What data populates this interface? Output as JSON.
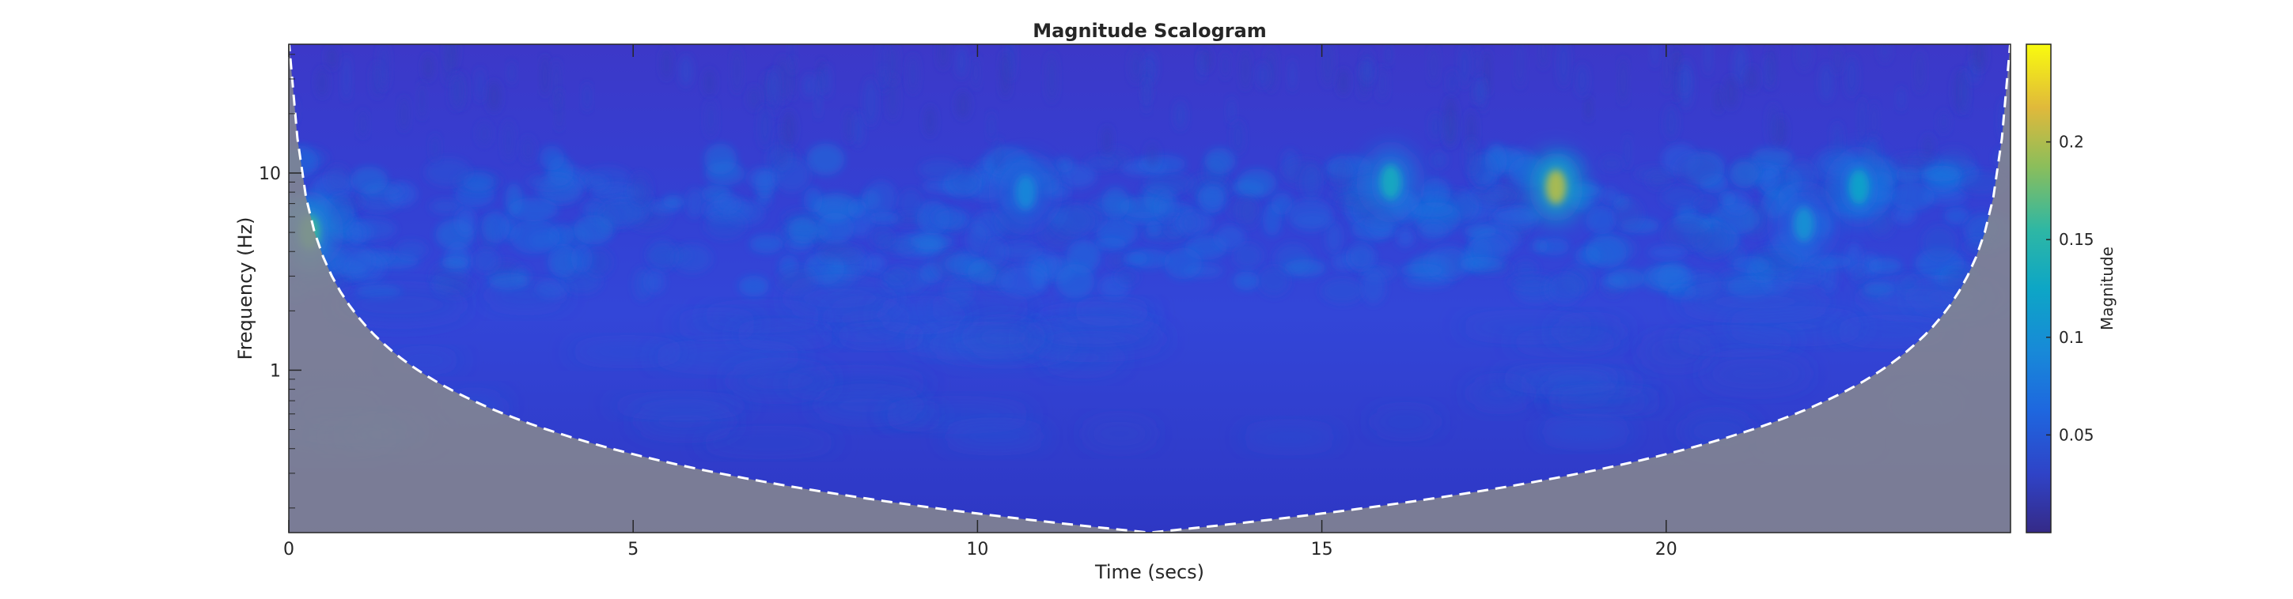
{
  "chart_data": {
    "type": "heatmap",
    "title": "Magnitude Scalogram",
    "xlabel": "Time (secs)",
    "ylabel": "Frequency (Hz)",
    "xlim": [
      0,
      25
    ],
    "ylim_hz": [
      0.15,
      45
    ],
    "y_scale": "log",
    "x_ticks": [
      "0",
      "5",
      "10",
      "15",
      "20"
    ],
    "x_tick_values": [
      0,
      5,
      10,
      15,
      20
    ],
    "y_ticks": [
      "1",
      "10"
    ],
    "y_tick_values": [
      1,
      10
    ],
    "colorbar": {
      "label": "Magnitude",
      "range": [
        0,
        0.25
      ],
      "ticks": [
        "0.05",
        "0.1",
        "0.15",
        "0.2"
      ],
      "tick_values": [
        0.05,
        0.1,
        0.15,
        0.2
      ],
      "colormap": "parula"
    },
    "cone_of_influence": {
      "style": "white dashed line, shaded outside",
      "min_frequency_hz_at_center": 0.15,
      "center_time_s": 12.5
    },
    "hotspots": [
      {
        "time_s": 0.3,
        "freq_hz": 5.0,
        "magnitude": 0.16
      },
      {
        "time_s": 16.0,
        "freq_hz": 9.0,
        "magnitude": 0.13
      },
      {
        "time_s": 18.4,
        "freq_hz": 8.5,
        "magnitude": 0.2
      },
      {
        "time_s": 22.8,
        "freq_hz": 8.5,
        "magnitude": 0.12
      },
      {
        "time_s": 22.0,
        "freq_hz": 5.5,
        "magnitude": 0.1
      },
      {
        "time_s": 10.7,
        "freq_hz": 8.0,
        "magnitude": 0.09
      }
    ]
  }
}
